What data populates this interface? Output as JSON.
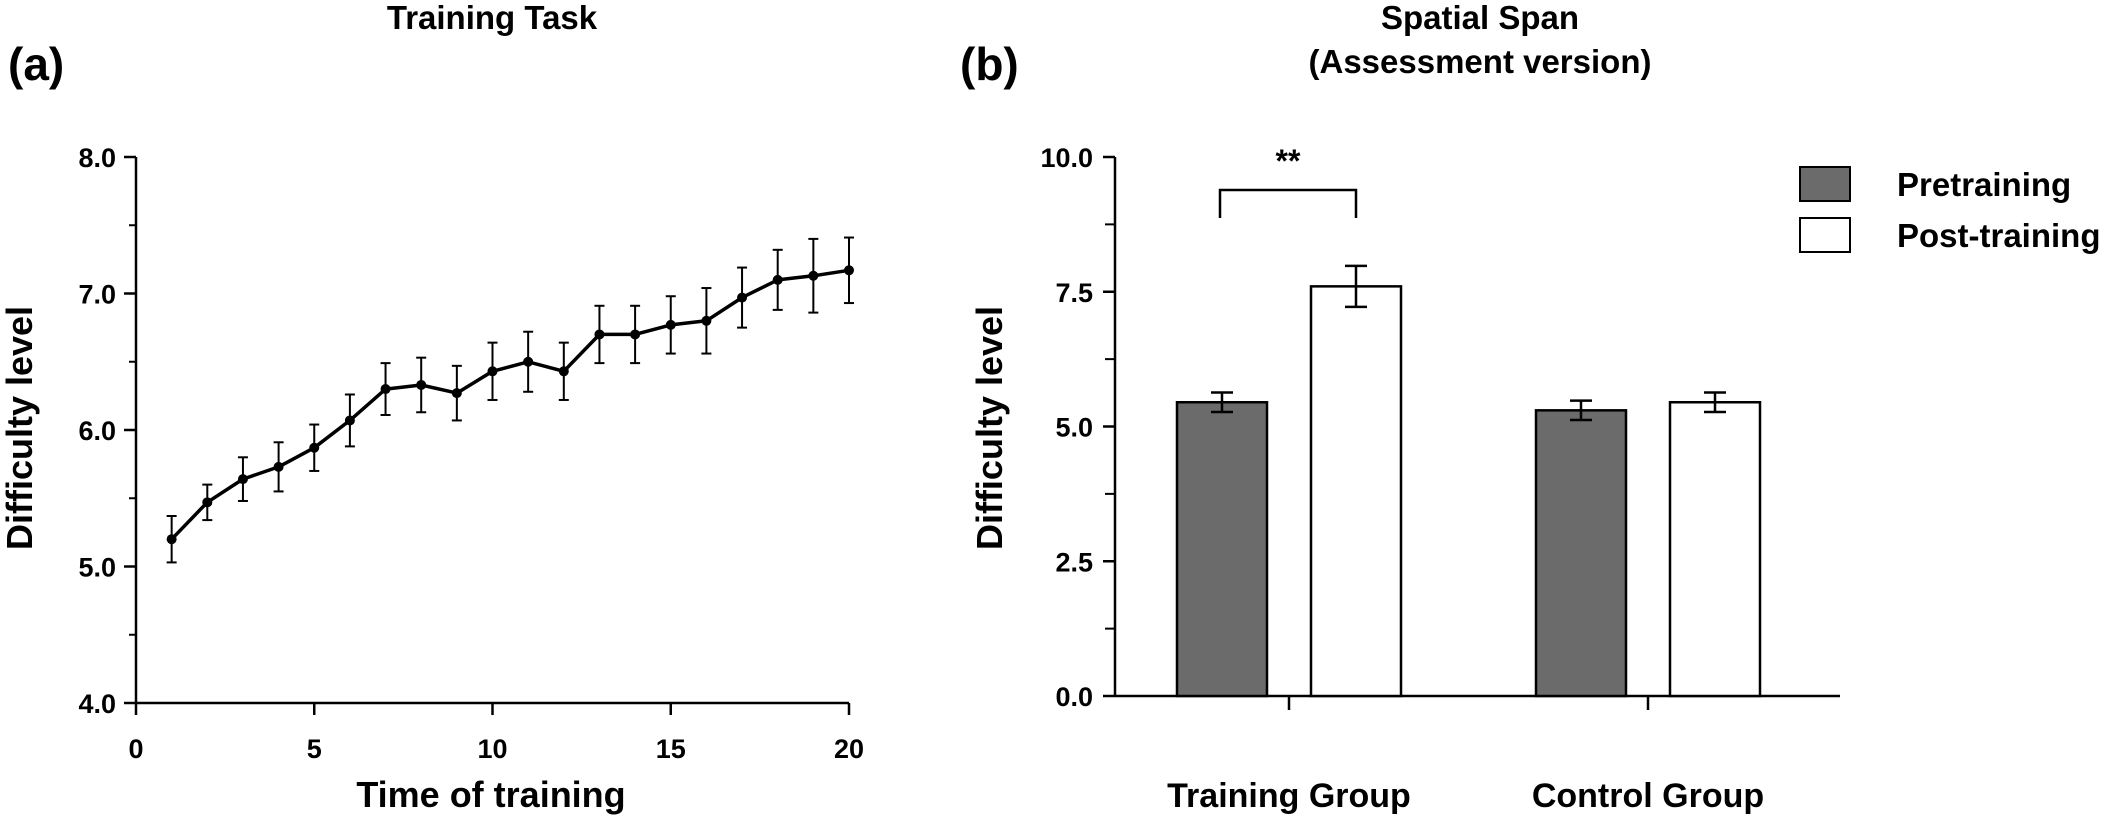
{
  "chart_data": [
    {
      "panel_label": "(a)",
      "type": "line",
      "title": "Training Task",
      "xlabel": "Time of training",
      "ylabel": "Difficulty level",
      "xlim": [
        0,
        20
      ],
      "ylim": [
        4.0,
        8.0
      ],
      "x_ticks": [
        "0",
        "5",
        "10",
        "15",
        "20"
      ],
      "y_ticks": [
        "4.0",
        "5.0",
        "6.0",
        "7.0",
        "8.0"
      ],
      "grid": false,
      "x": [
        1,
        2,
        3,
        4,
        5,
        6,
        7,
        8,
        9,
        10,
        11,
        12,
        13,
        14,
        15,
        16,
        17,
        18,
        19,
        20
      ],
      "y": [
        5.2,
        5.47,
        5.64,
        5.73,
        5.87,
        6.07,
        6.3,
        6.33,
        6.27,
        6.43,
        6.5,
        6.43,
        6.7,
        6.7,
        6.77,
        6.8,
        6.97,
        7.1,
        7.13,
        7.17
      ],
      "error": [
        0.17,
        0.13,
        0.16,
        0.18,
        0.17,
        0.19,
        0.19,
        0.2,
        0.2,
        0.21,
        0.22,
        0.21,
        0.21,
        0.21,
        0.21,
        0.24,
        0.22,
        0.22,
        0.27,
        0.24
      ],
      "color": "#000000"
    },
    {
      "panel_label": "(b)",
      "type": "bar",
      "title": "Spatial Span\n(Assessment version)",
      "title_lines": [
        "Spatial Span",
        "(Assessment version)"
      ],
      "ylabel": "Difficulty level",
      "xlabel": "",
      "ylim": [
        0.0,
        10.0
      ],
      "y_ticks": [
        "0.0",
        "2.5",
        "5.0",
        "7.5",
        "10.0"
      ],
      "grid": false,
      "legend_position": "top-right",
      "categories": [
        "Training Group",
        "Control Group"
      ],
      "series": [
        {
          "name": "Pretraining",
          "values": [
            5.45,
            5.3
          ],
          "error": [
            0.18,
            0.18
          ],
          "color": "#6b6b6b"
        },
        {
          "name": "Post-training",
          "values": [
            7.6,
            5.45
          ],
          "error": [
            0.38,
            0.18
          ],
          "color": "#ffffff"
        }
      ],
      "annotations": [
        {
          "text": "**",
          "between": [
            "Training Group Pretraining",
            "Training Group Post-training"
          ]
        }
      ]
    }
  ]
}
